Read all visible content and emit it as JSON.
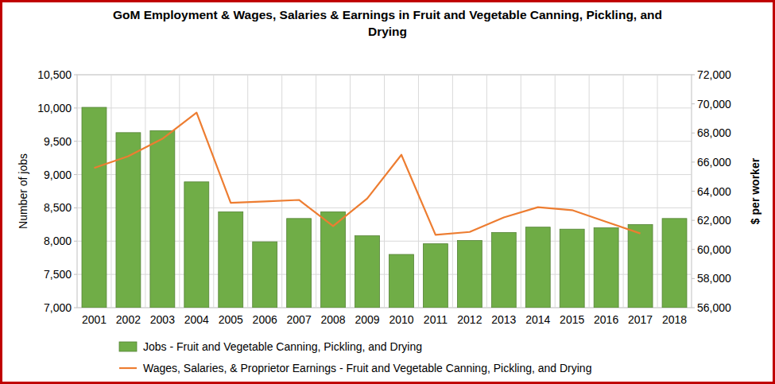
{
  "chart_data": {
    "type": "bar",
    "title": "GoM Employment & Wages, Salaries & Earnings in Fruit and Vegetable Canning, Pickling, and Drying",
    "ylabel": "Number of jobs",
    "y2label": "$ per worker",
    "categories": [
      "2001",
      "2002",
      "2003",
      "2004",
      "2005",
      "2006",
      "2007",
      "2008",
      "2009",
      "2010",
      "2011",
      "2012",
      "2013",
      "2014",
      "2015",
      "2016",
      "2017",
      "2018"
    ],
    "series": [
      {
        "name": "Jobs - Fruit and Vegetable Canning, Pickling, and Drying",
        "type": "bar",
        "color": "#70ad47",
        "values": [
          10010,
          9630,
          9660,
          8890,
          8440,
          7990,
          8340,
          8440,
          8080,
          7800,
          7960,
          8010,
          8130,
          8210,
          8180,
          8200,
          8250,
          8340
        ]
      },
      {
        "name": "Wages, Salaries, & Proprietor Earnings - Fruit and Vegetable Canning, Pickling, and Drying",
        "type": "line",
        "axis": "y2",
        "color": "#ed7d31",
        "values": [
          65600,
          66400,
          67600,
          69400,
          63200,
          63300,
          63400,
          61600,
          63500,
          66500,
          61000,
          61200,
          62200,
          62900,
          62700,
          61900,
          61100,
          null
        ]
      }
    ],
    "ylim": [
      7000,
      10500
    ],
    "yticks": [
      {
        "value": 7000,
        "label": "7,000"
      },
      {
        "value": 7500,
        "label": "7,500"
      },
      {
        "value": 8000,
        "label": "8,000"
      },
      {
        "value": 8500,
        "label": "8,500"
      },
      {
        "value": 9000,
        "label": "9,000"
      },
      {
        "value": 9500,
        "label": "9,500"
      },
      {
        "value": 10000,
        "label": "10,000"
      },
      {
        "value": 10500,
        "label": "10,500"
      }
    ],
    "y2lim": [
      56000,
      72000
    ],
    "y2ticks": [
      {
        "value": 56000,
        "label": "56,000"
      },
      {
        "value": 58000,
        "label": "58,000"
      },
      {
        "value": 60000,
        "label": "60,000"
      },
      {
        "value": 62000,
        "label": "62,000"
      },
      {
        "value": 64000,
        "label": "64,000"
      },
      {
        "value": 66000,
        "label": "66,000"
      },
      {
        "value": 68000,
        "label": "68,000"
      },
      {
        "value": 70000,
        "label": "70,000"
      },
      {
        "value": 72000,
        "label": "72,000"
      }
    ],
    "grid": true,
    "legend": "bottom"
  }
}
